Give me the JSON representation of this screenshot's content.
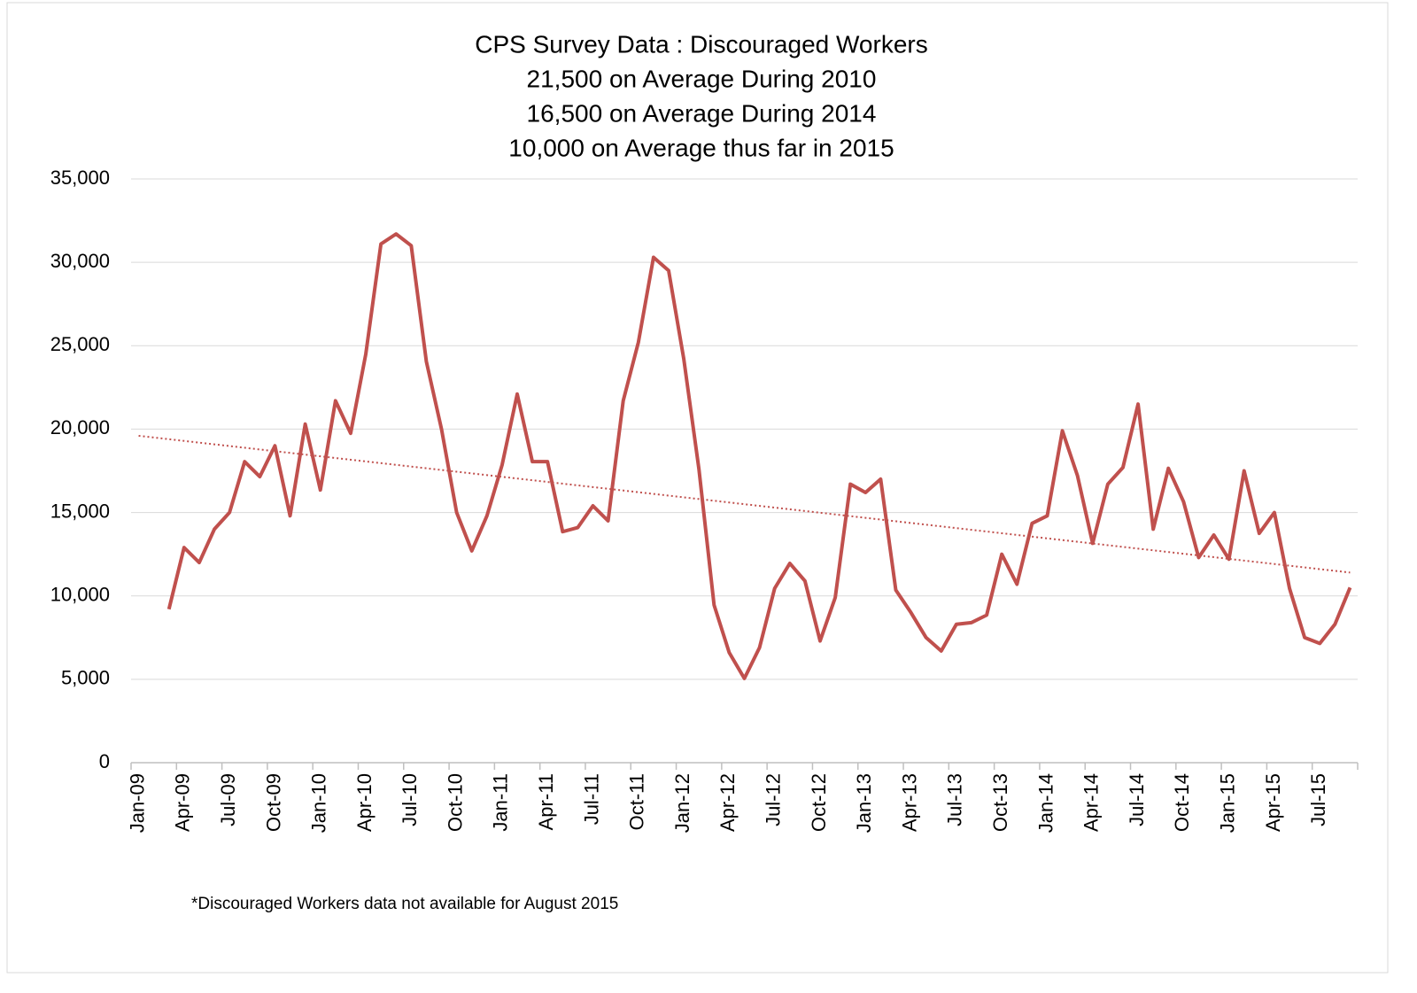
{
  "chart_data": {
    "type": "line",
    "title": [
      "CPS Survey Data : Discouraged Workers",
      "21,500 on Average During 2010",
      "16,500 on Average During 2014",
      "10,000 on Average thus far in 2015"
    ],
    "annotation": "*Discouraged Workers data not available for August 2015",
    "categories": [
      "Jan-09",
      null,
      null,
      "Apr-09",
      null,
      null,
      "Jul-09",
      null,
      null,
      "Oct-09",
      null,
      null,
      "Jan-10",
      null,
      null,
      "Apr-10",
      null,
      null,
      "Jul-10",
      null,
      null,
      "Oct-10",
      null,
      null,
      "Jan-11",
      null,
      null,
      "Apr-11",
      null,
      null,
      "Jul-11",
      null,
      null,
      "Oct-11",
      null,
      null,
      "Jan-12",
      null,
      null,
      "Apr-12",
      null,
      null,
      "Jul-12",
      null,
      null,
      "Oct-12",
      null,
      null,
      "Jan-13",
      null,
      null,
      "Apr-13",
      null,
      null,
      "Jul-13",
      null,
      null,
      "Oct-13",
      null,
      null,
      "Jan-14",
      null,
      null,
      "Apr-14",
      null,
      null,
      "Jul-14",
      null,
      null,
      "Oct-14",
      null,
      null,
      "Jan-15",
      null,
      null,
      "Apr-15",
      null,
      null,
      "Jul-15",
      null,
      null
    ],
    "series": [
      {
        "color": "#c0504d",
        "values": [
          null,
          null,
          9200,
          12900,
          12000,
          14000,
          15000,
          18050,
          17150,
          19000,
          14800,
          20300,
          16350,
          21700,
          19750,
          24500,
          31100,
          31700,
          31000,
          24050,
          20000,
          15000,
          12700,
          14800,
          17850,
          22100,
          18050,
          18050,
          13850,
          14100,
          15400,
          14500,
          21700,
          25200,
          30300,
          29500,
          24200,
          17600,
          9450,
          6600,
          5050,
          6900,
          10450,
          11950,
          10900,
          7300,
          9900,
          16700,
          16200,
          17000,
          10350,
          9000,
          7500,
          6700,
          8300,
          8400,
          8850,
          12500,
          10700,
          14350,
          14800,
          19900,
          17200,
          13150,
          16700,
          17700,
          21500,
          14000,
          17650,
          15650,
          12300,
          13650,
          12200,
          17500,
          13750,
          15000,
          10450,
          7500,
          7150,
          8300,
          10500
        ]
      }
    ],
    "trendline": {
      "color": "#c0504d",
      "style": "dotted",
      "start": 19600,
      "end": 11400
    },
    "ylim": [
      0,
      35000
    ],
    "yticks": [
      0,
      {
        "value": 5000,
        "label": "5,000"
      },
      {
        "value": 10000,
        "label": "10,000"
      },
      {
        "value": 15000,
        "label": "15,000"
      },
      {
        "value": 20000,
        "label": "20,000"
      },
      {
        "value": 25000,
        "label": "25,000"
      },
      {
        "value": 30000,
        "label": "30,000"
      },
      {
        "value": 35000,
        "label": "35,000"
      }
    ],
    "grid": true
  }
}
